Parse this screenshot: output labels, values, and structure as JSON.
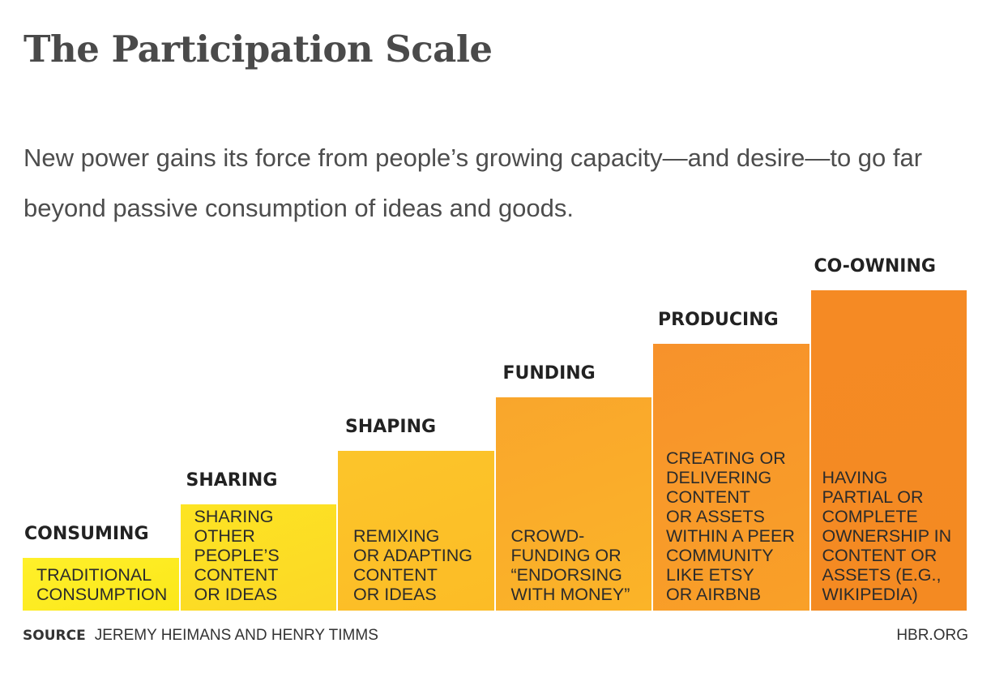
{
  "title": "The Participation Scale",
  "subtitle": "New power gains its force from people’s growing capacity—and desire—to go far beyond passive consumption of ideas and goods.",
  "steps": [
    {
      "label": "CONSUMING",
      "description": "TRADITIONAL\nCONSUMPTION",
      "level": 1,
      "color_top": "#fff02a",
      "color_bottom": "#fbe71a"
    },
    {
      "label": "SHARING",
      "description": "SHARING\nOTHER\nPEOPLE’S\nCONTENT\nOR IDEAS",
      "level": 2,
      "color_top": "#fde423",
      "color_bottom": "#fcd726"
    },
    {
      "label": "SHAPING",
      "description": "REMIXING\nOR ADAPTING\nCONTENT\nOR IDEAS",
      "level": 3,
      "color_top": "#fcc52a",
      "color_bottom": "#fcbc26"
    },
    {
      "label": "FUNDING",
      "description": "CROWD-\nFUNDING OR\n“ENDORSING\nWITH MONEY”",
      "level": 4,
      "color_top": "#f9a62c",
      "color_bottom": "#fbb428"
    },
    {
      "label": "PRODUCING",
      "description": "CREATING OR\nDELIVERING\nCONTENT\nOR ASSETS\nWITHIN A PEER\nCOMMUNITY\nLIKE ETSY\nOR AIRBNB",
      "level": 5,
      "color_top": "#f7922b",
      "color_bottom": "#f9a028"
    },
    {
      "label": "CO-OWNING",
      "description": "HAVING\nPARTIAL OR\nCOMPLETE\nOWNERSHIP IN\nCONTENT OR\nASSETS (E.G.,\nWIKIPEDIA)",
      "level": 6,
      "color_top": "#f58a24",
      "color_bottom": "#f48a22"
    }
  ],
  "source": {
    "key": "SOURCE",
    "value": "JEREMY HEIMANS AND HENRY TIMMS"
  },
  "site": "HBR.ORG"
}
